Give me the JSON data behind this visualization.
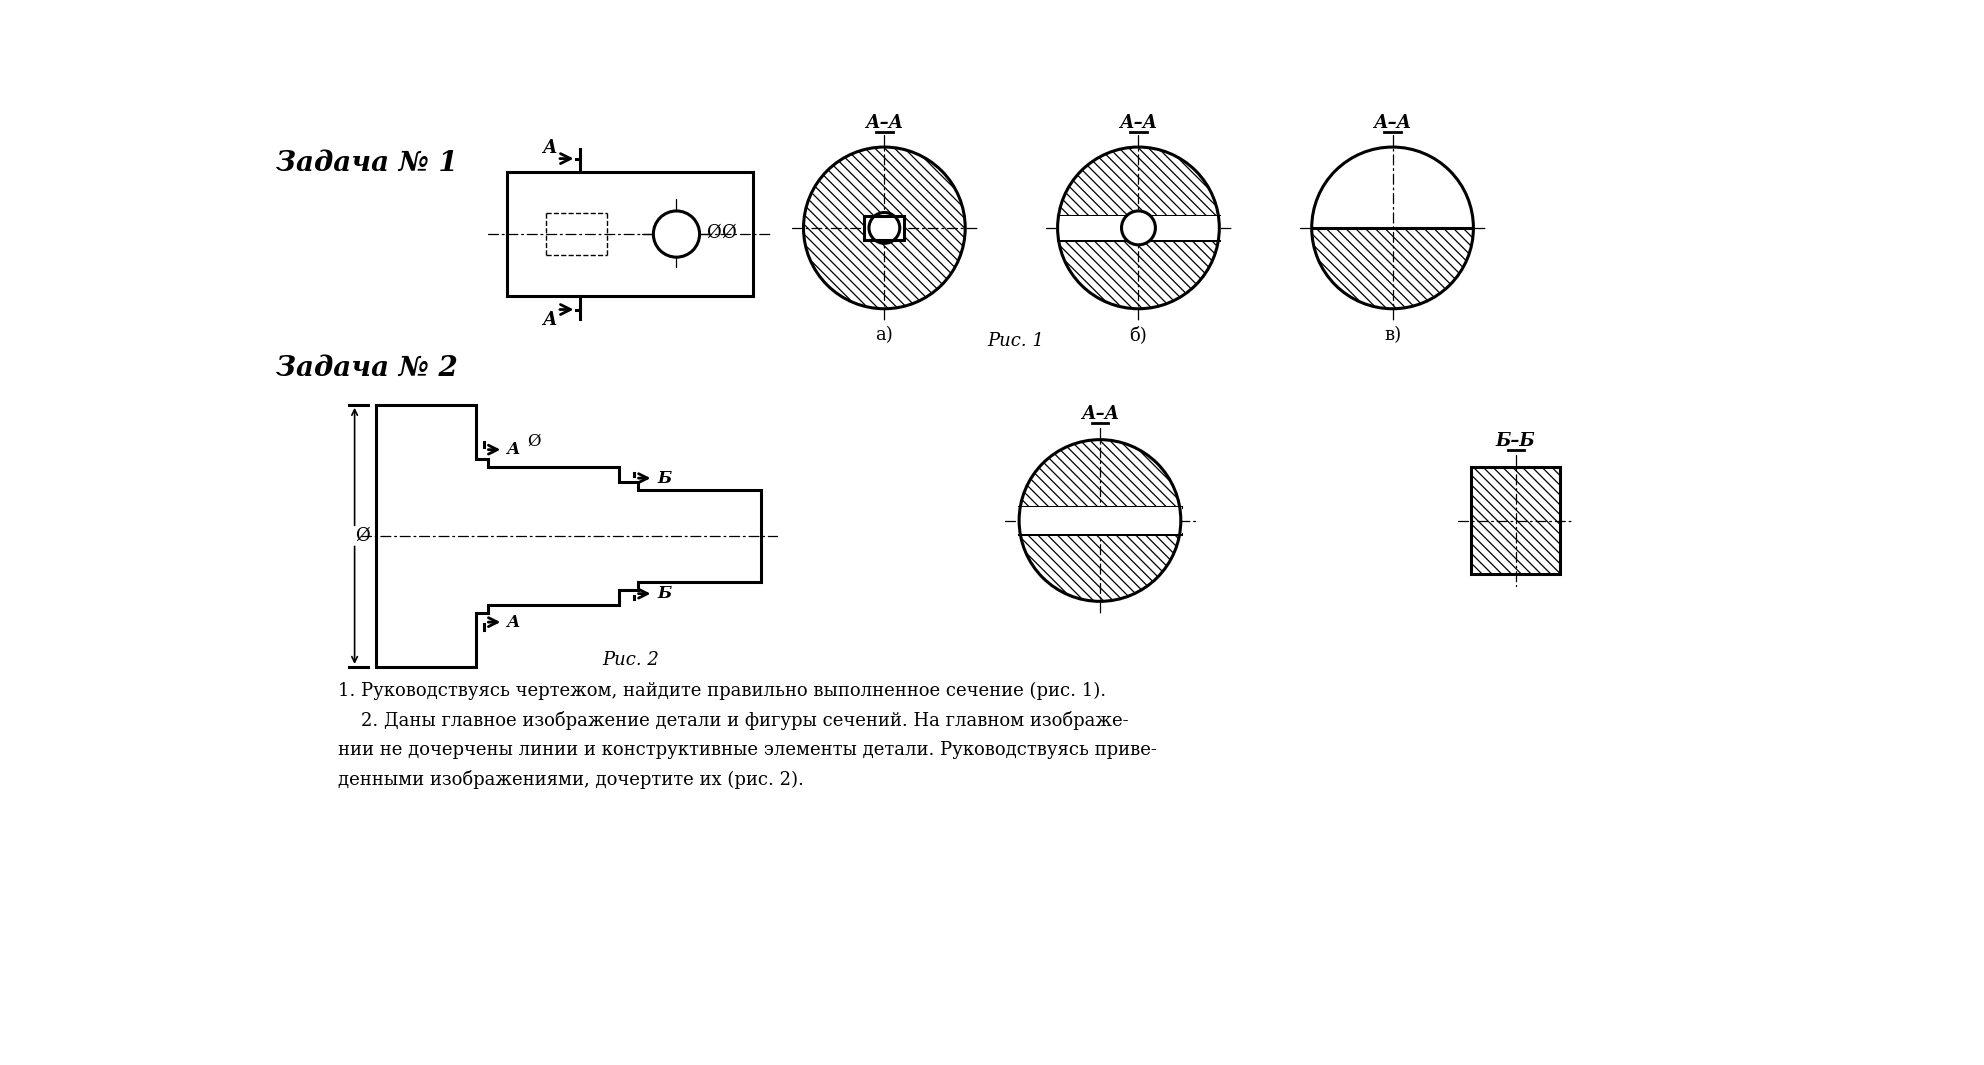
{
  "bg_color": "#ffffff",
  "title1": "Задача № 1",
  "title2": "Задача № 2",
  "fig1_label": "Рис. 1",
  "fig2_label": "Рис. 2",
  "label_aa": "А–А",
  "label_bb": "Б–Б",
  "sub_a": "а)",
  "sub_b": "б)",
  "sub_v": "в)",
  "text1": "1. Руководствуясь чертежом, найдите правильно выполненное сечение (рис. 1).",
  "text2": "    2. Даны главное изображение детали и фигуры сечений. На главном изображе-",
  "text3": "нии не дочерчены линии и конструктивные элементы детали. Руководствуясь приве-",
  "text4": "денными изображениями, дочертите их (рис. 2)."
}
